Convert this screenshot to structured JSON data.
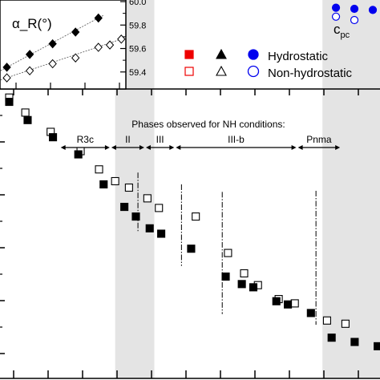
{
  "chart_data": [
    {
      "type": "scatter",
      "panel": "main",
      "xlim": [
        0,
        16.5
      ],
      "ylim": [
        0,
        27
      ],
      "grid": false,
      "shaded_regions": [
        [
          5.0,
          6.7
        ],
        [
          14.0,
          16.5
        ]
      ],
      "annotation_title": "Phases observed for NH conditions:",
      "phases": [
        {
          "label": "R3c",
          "from": 2.6,
          "to": 4.8
        },
        {
          "label": "II",
          "from": 4.8,
          "to": 6.3
        },
        {
          "label": "III",
          "from": 6.3,
          "to": 7.6
        },
        {
          "label": "III-b",
          "from": 7.6,
          "to": 12.9
        },
        {
          "label": "Pnma",
          "from": 12.9,
          "to": 14.8
        }
      ],
      "boundaries": [
        {
          "x": 5.99,
          "y_top": 19.2,
          "y_bottom": 13.7
        },
        {
          "x": 7.88,
          "y_top": 18.1,
          "y_bottom": 10.5
        },
        {
          "x": 9.65,
          "y_top": 17.4,
          "y_bottom": 6.0
        },
        {
          "x": 13.72,
          "y_top": 17.5,
          "y_bottom": 5.0
        }
      ],
      "series": [
        {
          "name": "Hydrostatic",
          "marker": "filled-square",
          "x": [
            0.4,
            1.2,
            2.3,
            3.4,
            4.5,
            5.4,
            5.9,
            6.5,
            7.0,
            8.3,
            9.8,
            10.5,
            11.0,
            12.0,
            12.5,
            13.5,
            14.4,
            15.4,
            16.4
          ],
          "y": [
            25.8,
            24.1,
            22.5,
            20.9,
            18.1,
            16.0,
            15.1,
            14.0,
            13.5,
            12.1,
            9.5,
            8.8,
            8.5,
            7.2,
            6.9,
            6.1,
            3.8,
            3.4,
            3.0
          ]
        },
        {
          "name": "Non-hydrostatic",
          "marker": "open-square",
          "x": [
            0.4,
            1.1,
            2.2,
            3.5,
            4.3,
            5.0,
            5.6,
            6.4,
            6.9,
            8.5,
            9.9,
            10.6,
            11.2,
            12.1,
            12.8,
            14.2,
            15.0
          ],
          "y": [
            26.2,
            24.8,
            23.0,
            21.2,
            19.5,
            18.4,
            17.8,
            16.8,
            15.9,
            15.1,
            11.7,
            9.8,
            8.7,
            7.4,
            7.0,
            5.4,
            5.1
          ]
        }
      ]
    },
    {
      "type": "scatter",
      "panel": "inset",
      "title": "α_R(°)",
      "ytick_labels": [
        "60.0",
        "59.8",
        "59.6",
        "59.4"
      ],
      "ylim": [
        59.33,
        60.0
      ],
      "xlim": [
        0,
        5.5
      ],
      "fit_lines": true,
      "series": [
        {
          "marker": "filled-diamond",
          "x": [
            0.3,
            1.3,
            2.3,
            3.3,
            4.3
          ],
          "y": [
            59.44,
            59.55,
            59.64,
            59.74,
            59.86
          ]
        },
        {
          "marker": "open-diamond",
          "x": [
            0.3,
            1.3,
            2.3,
            3.3,
            4.3,
            4.8,
            5.3
          ],
          "y": [
            59.35,
            59.41,
            59.47,
            59.52,
            59.61,
            59.63,
            59.68
          ]
        }
      ]
    },
    {
      "type": "scatter",
      "panel": "c_pc",
      "label_main": "c",
      "label_sub": "pc",
      "series": [
        {
          "marker": "filled-circle",
          "color": "#0000ee",
          "x": [
            14.1,
            14.9,
            15.7
          ],
          "y": [
            27.1,
            27.0,
            26.9
          ]
        },
        {
          "marker": "open-circle",
          "color": "#0000ee",
          "x": [
            14.1,
            14.9
          ],
          "y": [
            26.3,
            26.0
          ]
        }
      ]
    }
  ],
  "legend": {
    "rows": [
      {
        "square": "#ee0000",
        "square_filled": true,
        "triangle_filled": true,
        "circle": "#0000ee",
        "circle_filled": true,
        "label": "Hydrostatic"
      },
      {
        "square": "#ee0000",
        "square_filled": false,
        "triangle_filled": false,
        "circle": "#0000ee",
        "circle_filled": false,
        "label": "Non-hydrostatic"
      }
    ]
  }
}
